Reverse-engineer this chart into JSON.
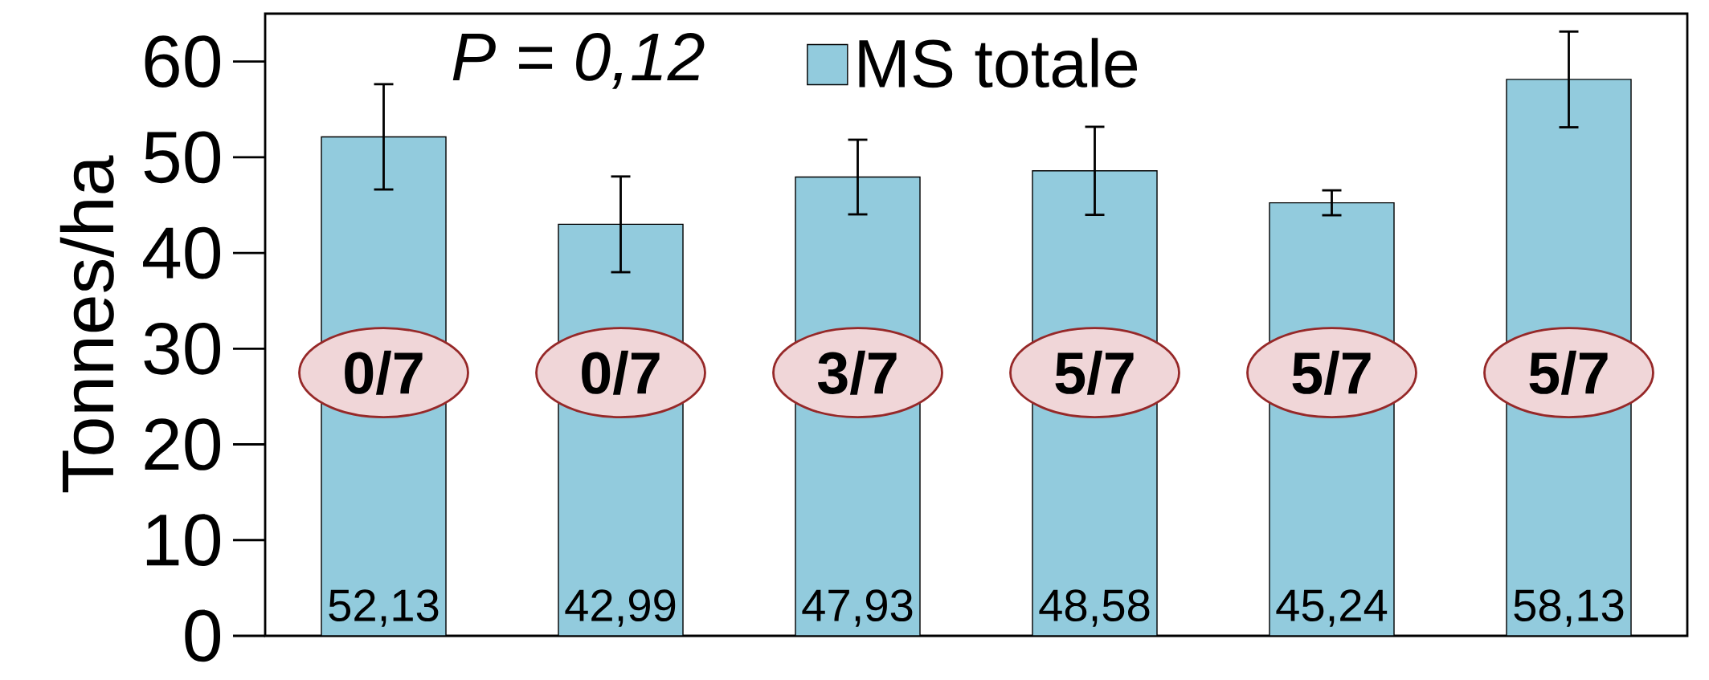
{
  "chart_data": {
    "type": "bar",
    "ylabel": "Tonnes/ha",
    "categories": [
      null,
      null,
      null,
      null,
      null,
      null
    ],
    "series": [
      {
        "name": "MS totale",
        "color": "#92cbdd",
        "values": [
          52.13,
          42.99,
          47.93,
          48.58,
          45.24,
          58.13
        ],
        "errors": [
          5.5,
          5.0,
          3.9,
          4.6,
          1.3,
          5.0
        ],
        "value_labels": [
          "52,13",
          "42,99",
          "47,93",
          "48,58",
          "45,24",
          "58,13"
        ]
      }
    ],
    "ylim": [
      0,
      65
    ],
    "yticks": [
      0,
      10,
      20,
      30,
      40,
      50,
      60
    ],
    "legend": "top",
    "grid": false,
    "annotations": [
      "P = 0,12",
      "0/7",
      "0/7",
      "3/7",
      "5/7",
      "5/7",
      "5/7"
    ]
  }
}
